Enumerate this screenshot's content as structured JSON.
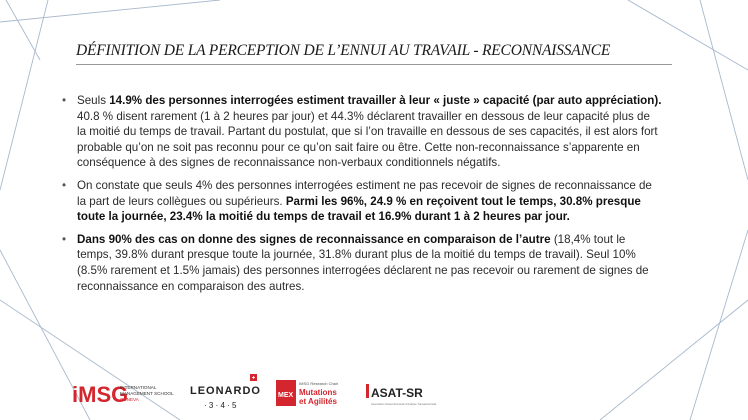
{
  "slide": {
    "title": "DÉFINITION DE LA PERCEPTION DE L’ENNUI AU TRAVAIL - RECONNAISSANCE",
    "bullets": [
      {
        "segments": [
          {
            "text": "Seuls ",
            "bold": false
          },
          {
            "text": "14.9% des personnes interrogées estiment travailler à leur « juste » capacité (par auto appréciation).",
            "bold": true
          },
          {
            "text": " 40.8 % disent rarement (1 à 2 heures par jour) et 44.3% déclarent travailler en dessous de leur capacité plus de la moitié du temps de travail. Partant du postulat, que si l’on travaille en dessous de ses capacités, il est alors fort probable qu’on ne soit pas reconnu pour ce qu’on sait faire ou être. Cette non-reconnaissance s’apparente en conséquence à des signes de reconnaissance non-verbaux conditionnels négatifs.",
            "bold": false
          }
        ]
      },
      {
        "segments": [
          {
            "text": "On constate que seuls 4% des personnes interrogées estiment ne pas recevoir de signes de reconnaissance de la part de leurs collègues ou supérieurs. ",
            "bold": false
          },
          {
            "text": "Parmi les 96%, 24.9 % en reçoivent tout le temps, 30.8% presque toute la journée, 23.4% la moitié du temps de travail et 16.9% durant 1 à 2 heures par jour.",
            "bold": true
          }
        ]
      },
      {
        "segments": [
          {
            "text": "Dans 90% des cas on donne des signes de reconnaissance en comparaison de l’autre",
            "bold": true
          },
          {
            "text": " (18,4% tout le temps, 39.8% durant presque toute la journée, 31.8% durant plus de la moitié du temps de travail). Seul 10% (8.5% rarement et 1.5% jamais) des personnes interrogées déclarent ne pas recevoir ou rarement de signes de reconnaissance en comparaison des autres.",
            "bold": false
          }
        ]
      }
    ]
  },
  "logos": {
    "imsg": {
      "mark": "iMSG",
      "line1": "INTERNATIONAL",
      "line2": "MANAGEMENT SCHOOL",
      "line3": "GENEVA"
    },
    "leonardo": {
      "name": "LEONARDO",
      "numbers": "· 3 · 4 · 5"
    },
    "mex": {
      "mark": "MEX",
      "small": "IMSG Research Chair",
      "line1": "Mutations",
      "line2": "et Agilités"
    },
    "asat": {
      "name": "ASAT-SR",
      "sub": "Association Suisse Romande d’Analyse Transactionnelle"
    }
  },
  "colors": {
    "accent_red": "#d4262e",
    "deco_line": "#9fb3c8"
  }
}
